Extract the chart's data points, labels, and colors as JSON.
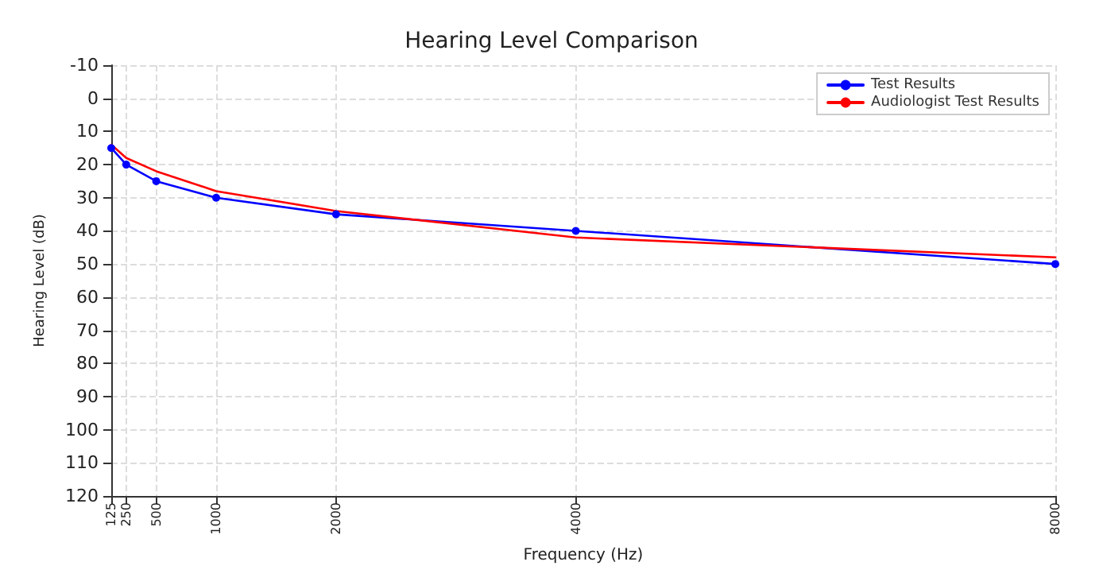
{
  "chart_data": {
    "type": "line",
    "title": "Hearing Level Comparison",
    "xlabel": "Frequency (Hz)",
    "ylabel": "Hearing Level (dB)",
    "x": [
      125,
      250,
      500,
      1000,
      2000,
      4000,
      8000
    ],
    "series": [
      {
        "name": "Test Results",
        "color": "#0000ff",
        "marker": "circle",
        "values": [
          15,
          20,
          25,
          30,
          35,
          40,
          50
        ]
      },
      {
        "name": "Audiologist Test Results",
        "color": "#ff0000",
        "marker": "none",
        "values": [
          14,
          18,
          22,
          28,
          34,
          42,
          48
        ]
      }
    ],
    "xlim": [
      125,
      8000
    ],
    "xticks": [
      125,
      250,
      500,
      1000,
      2000,
      4000,
      8000
    ],
    "ylim": [
      120,
      -10
    ],
    "yticks": [
      -10,
      0,
      10,
      20,
      30,
      40,
      50,
      60,
      70,
      80,
      90,
      100,
      110,
      120
    ],
    "grid": true,
    "legend": "top right",
    "line_style": "solid"
  }
}
